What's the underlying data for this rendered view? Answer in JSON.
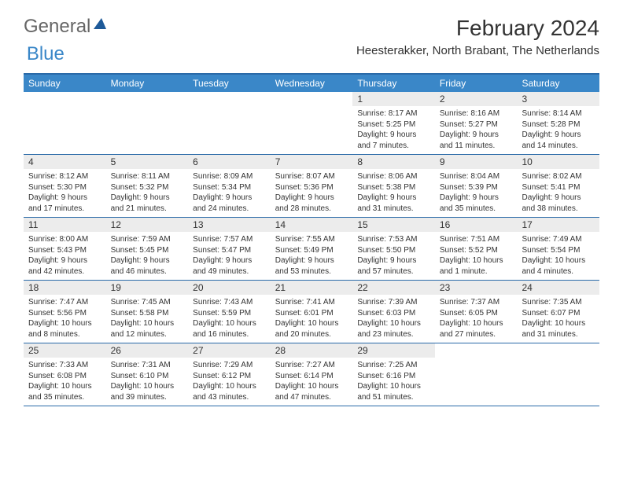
{
  "brand": {
    "part1": "General",
    "part2": "Blue"
  },
  "title": "February 2024",
  "location": "Heesterakker, North Brabant, The Netherlands",
  "colors": {
    "header_bg": "#3a87c8",
    "header_border": "#2a6aa8",
    "daynum_bg": "#ececec",
    "text": "#333333",
    "page_bg": "#ffffff"
  },
  "typography": {
    "title_fontsize": 28,
    "location_fontsize": 15,
    "dow_fontsize": 12,
    "daynum_fontsize": 12,
    "body_fontsize": 10
  },
  "days_of_week": [
    "Sunday",
    "Monday",
    "Tuesday",
    "Wednesday",
    "Thursday",
    "Friday",
    "Saturday"
  ],
  "weeks": [
    [
      {
        "n": "",
        "sunrise": "",
        "sunset": "",
        "daylight": ""
      },
      {
        "n": "",
        "sunrise": "",
        "sunset": "",
        "daylight": ""
      },
      {
        "n": "",
        "sunrise": "",
        "sunset": "",
        "daylight": ""
      },
      {
        "n": "",
        "sunrise": "",
        "sunset": "",
        "daylight": ""
      },
      {
        "n": "1",
        "sunrise": "Sunrise: 8:17 AM",
        "sunset": "Sunset: 5:25 PM",
        "daylight": "Daylight: 9 hours and 7 minutes."
      },
      {
        "n": "2",
        "sunrise": "Sunrise: 8:16 AM",
        "sunset": "Sunset: 5:27 PM",
        "daylight": "Daylight: 9 hours and 11 minutes."
      },
      {
        "n": "3",
        "sunrise": "Sunrise: 8:14 AM",
        "sunset": "Sunset: 5:28 PM",
        "daylight": "Daylight: 9 hours and 14 minutes."
      }
    ],
    [
      {
        "n": "4",
        "sunrise": "Sunrise: 8:12 AM",
        "sunset": "Sunset: 5:30 PM",
        "daylight": "Daylight: 9 hours and 17 minutes."
      },
      {
        "n": "5",
        "sunrise": "Sunrise: 8:11 AM",
        "sunset": "Sunset: 5:32 PM",
        "daylight": "Daylight: 9 hours and 21 minutes."
      },
      {
        "n": "6",
        "sunrise": "Sunrise: 8:09 AM",
        "sunset": "Sunset: 5:34 PM",
        "daylight": "Daylight: 9 hours and 24 minutes."
      },
      {
        "n": "7",
        "sunrise": "Sunrise: 8:07 AM",
        "sunset": "Sunset: 5:36 PM",
        "daylight": "Daylight: 9 hours and 28 minutes."
      },
      {
        "n": "8",
        "sunrise": "Sunrise: 8:06 AM",
        "sunset": "Sunset: 5:38 PM",
        "daylight": "Daylight: 9 hours and 31 minutes."
      },
      {
        "n": "9",
        "sunrise": "Sunrise: 8:04 AM",
        "sunset": "Sunset: 5:39 PM",
        "daylight": "Daylight: 9 hours and 35 minutes."
      },
      {
        "n": "10",
        "sunrise": "Sunrise: 8:02 AM",
        "sunset": "Sunset: 5:41 PM",
        "daylight": "Daylight: 9 hours and 38 minutes."
      }
    ],
    [
      {
        "n": "11",
        "sunrise": "Sunrise: 8:00 AM",
        "sunset": "Sunset: 5:43 PM",
        "daylight": "Daylight: 9 hours and 42 minutes."
      },
      {
        "n": "12",
        "sunrise": "Sunrise: 7:59 AM",
        "sunset": "Sunset: 5:45 PM",
        "daylight": "Daylight: 9 hours and 46 minutes."
      },
      {
        "n": "13",
        "sunrise": "Sunrise: 7:57 AM",
        "sunset": "Sunset: 5:47 PM",
        "daylight": "Daylight: 9 hours and 49 minutes."
      },
      {
        "n": "14",
        "sunrise": "Sunrise: 7:55 AM",
        "sunset": "Sunset: 5:49 PM",
        "daylight": "Daylight: 9 hours and 53 minutes."
      },
      {
        "n": "15",
        "sunrise": "Sunrise: 7:53 AM",
        "sunset": "Sunset: 5:50 PM",
        "daylight": "Daylight: 9 hours and 57 minutes."
      },
      {
        "n": "16",
        "sunrise": "Sunrise: 7:51 AM",
        "sunset": "Sunset: 5:52 PM",
        "daylight": "Daylight: 10 hours and 1 minute."
      },
      {
        "n": "17",
        "sunrise": "Sunrise: 7:49 AM",
        "sunset": "Sunset: 5:54 PM",
        "daylight": "Daylight: 10 hours and 4 minutes."
      }
    ],
    [
      {
        "n": "18",
        "sunrise": "Sunrise: 7:47 AM",
        "sunset": "Sunset: 5:56 PM",
        "daylight": "Daylight: 10 hours and 8 minutes."
      },
      {
        "n": "19",
        "sunrise": "Sunrise: 7:45 AM",
        "sunset": "Sunset: 5:58 PM",
        "daylight": "Daylight: 10 hours and 12 minutes."
      },
      {
        "n": "20",
        "sunrise": "Sunrise: 7:43 AM",
        "sunset": "Sunset: 5:59 PM",
        "daylight": "Daylight: 10 hours and 16 minutes."
      },
      {
        "n": "21",
        "sunrise": "Sunrise: 7:41 AM",
        "sunset": "Sunset: 6:01 PM",
        "daylight": "Daylight: 10 hours and 20 minutes."
      },
      {
        "n": "22",
        "sunrise": "Sunrise: 7:39 AM",
        "sunset": "Sunset: 6:03 PM",
        "daylight": "Daylight: 10 hours and 23 minutes."
      },
      {
        "n": "23",
        "sunrise": "Sunrise: 7:37 AM",
        "sunset": "Sunset: 6:05 PM",
        "daylight": "Daylight: 10 hours and 27 minutes."
      },
      {
        "n": "24",
        "sunrise": "Sunrise: 7:35 AM",
        "sunset": "Sunset: 6:07 PM",
        "daylight": "Daylight: 10 hours and 31 minutes."
      }
    ],
    [
      {
        "n": "25",
        "sunrise": "Sunrise: 7:33 AM",
        "sunset": "Sunset: 6:08 PM",
        "daylight": "Daylight: 10 hours and 35 minutes."
      },
      {
        "n": "26",
        "sunrise": "Sunrise: 7:31 AM",
        "sunset": "Sunset: 6:10 PM",
        "daylight": "Daylight: 10 hours and 39 minutes."
      },
      {
        "n": "27",
        "sunrise": "Sunrise: 7:29 AM",
        "sunset": "Sunset: 6:12 PM",
        "daylight": "Daylight: 10 hours and 43 minutes."
      },
      {
        "n": "28",
        "sunrise": "Sunrise: 7:27 AM",
        "sunset": "Sunset: 6:14 PM",
        "daylight": "Daylight: 10 hours and 47 minutes."
      },
      {
        "n": "29",
        "sunrise": "Sunrise: 7:25 AM",
        "sunset": "Sunset: 6:16 PM",
        "daylight": "Daylight: 10 hours and 51 minutes."
      },
      {
        "n": "",
        "sunrise": "",
        "sunset": "",
        "daylight": ""
      },
      {
        "n": "",
        "sunrise": "",
        "sunset": "",
        "daylight": ""
      }
    ]
  ]
}
